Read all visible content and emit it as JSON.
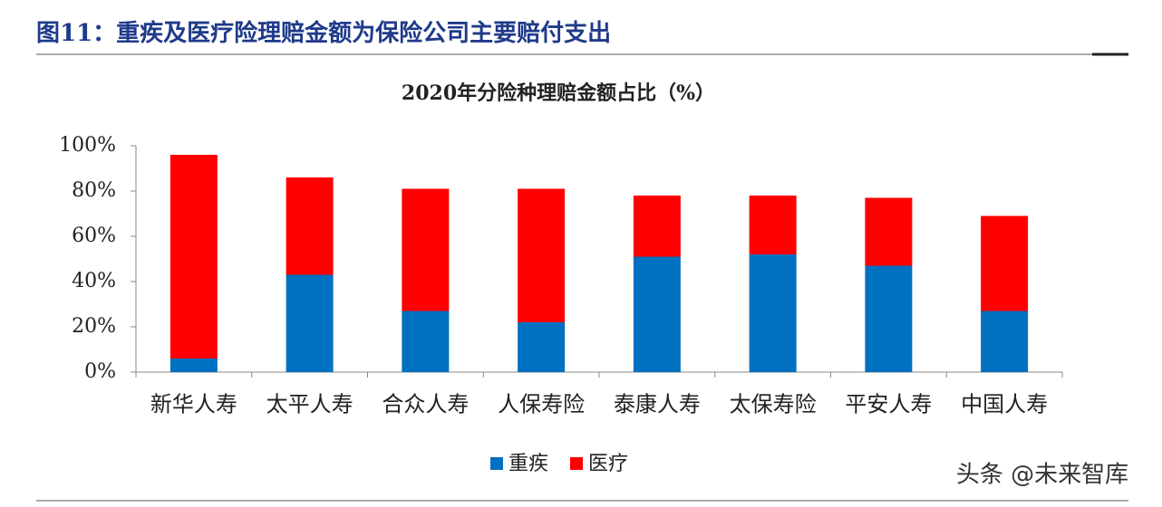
{
  "header": {
    "title": "图11：重疾及医疗险理赔金额为保险公司主要赔付支出"
  },
  "watermark": "头条 @未来智库",
  "chart_data": {
    "type": "stacked-bar",
    "title": "2020年分险种理赔金额占比（%）",
    "categories": [
      "新华人寿",
      "太平人寿",
      "合众人寿",
      "人保寿险",
      "泰康人寿",
      "太保寿险",
      "平安人寿",
      "中国人寿"
    ],
    "series": [
      {
        "name": "重疾",
        "color": "#0070c0",
        "values": [
          6,
          43,
          27,
          22,
          51,
          52,
          47,
          27
        ]
      },
      {
        "name": "医疗",
        "color": "#ff0000",
        "values": [
          90,
          43,
          54,
          59,
          27,
          26,
          30,
          42
        ]
      }
    ],
    "ylim": [
      0,
      100
    ],
    "yticks": [
      {
        "value": 0,
        "label": "0%"
      },
      {
        "value": 20,
        "label": "20%"
      },
      {
        "value": 40,
        "label": "40%"
      },
      {
        "value": 60,
        "label": "60%"
      },
      {
        "value": 80,
        "label": "80%"
      },
      {
        "value": 100,
        "label": "100%"
      }
    ],
    "legend": "bottom"
  }
}
